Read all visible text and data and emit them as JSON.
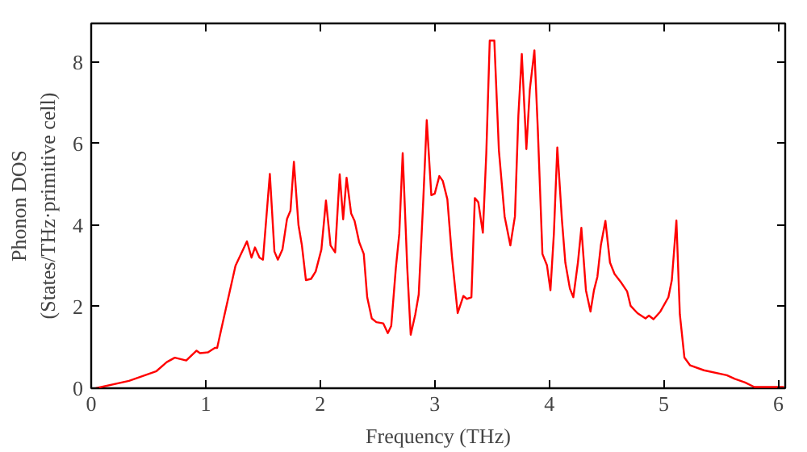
{
  "chart_data": {
    "type": "line",
    "xlabel": "Frequency (THz)",
    "ylabel": "Phonon DOS\n(States/THz·primitive cell)",
    "xlim": [
      0,
      6.06
    ],
    "ylim": [
      0,
      8.94
    ],
    "xticks": [
      0,
      1,
      2,
      3,
      4,
      5,
      6
    ],
    "yticks": [
      0,
      2,
      4,
      6,
      8
    ],
    "grid": false,
    "marker": "none",
    "line_style": "solid",
    "series": [
      {
        "color": "#ff0000",
        "x": [
          0.04,
          0.33,
          0.57,
          0.66,
          0.73,
          0.83,
          0.92,
          0.95,
          1.02,
          1.08,
          1.1,
          1.14,
          1.26,
          1.36,
          1.4,
          1.43,
          1.47,
          1.5,
          1.56,
          1.6,
          1.63,
          1.67,
          1.71,
          1.74,
          1.77,
          1.81,
          1.84,
          1.875,
          1.92,
          1.96,
          2.01,
          2.05,
          2.09,
          2.13,
          2.17,
          2.2,
          2.23,
          2.27,
          2.3,
          2.34,
          2.38,
          2.41,
          2.45,
          2.49,
          2.55,
          2.59,
          2.62,
          2.66,
          2.69,
          2.72,
          2.76,
          2.79,
          2.83,
          2.86,
          2.9,
          2.93,
          2.97,
          3.0,
          3.04,
          3.07,
          3.11,
          3.15,
          3.2,
          3.25,
          3.28,
          3.32,
          3.35,
          3.38,
          3.42,
          3.45,
          3.48,
          3.52,
          3.56,
          3.61,
          3.66,
          3.7,
          3.73,
          3.76,
          3.8,
          3.83,
          3.87,
          3.9,
          3.94,
          3.98,
          4.01,
          4.04,
          4.07,
          4.11,
          4.14,
          4.18,
          4.21,
          4.25,
          4.28,
          4.32,
          4.36,
          4.39,
          4.42,
          4.45,
          4.49,
          4.53,
          4.57,
          4.63,
          4.68,
          4.71,
          4.77,
          4.84,
          4.87,
          4.91,
          4.97,
          5.04,
          5.07,
          5.11,
          5.14,
          5.18,
          5.23,
          5.35,
          5.55,
          5.62,
          5.71,
          5.79,
          6.05
        ],
        "values": [
          0,
          0.18,
          0.42,
          0.64,
          0.75,
          0.68,
          0.92,
          0.86,
          0.88,
          0.99,
          0.99,
          1.5,
          3.0,
          3.6,
          3.2,
          3.45,
          3.2,
          3.15,
          5.25,
          3.35,
          3.15,
          3.4,
          4.15,
          4.35,
          5.55,
          4.0,
          3.5,
          2.65,
          2.68,
          2.86,
          3.4,
          4.6,
          3.5,
          3.33,
          5.24,
          4.14,
          5.16,
          4.28,
          4.1,
          3.58,
          3.29,
          2.23,
          1.71,
          1.62,
          1.59,
          1.35,
          1.53,
          2.94,
          3.78,
          5.76,
          2.94,
          1.31,
          1.81,
          2.3,
          4.63,
          6.57,
          4.73,
          4.77,
          5.2,
          5.08,
          4.63,
          3.22,
          1.84,
          2.26,
          2.19,
          2.23,
          4.66,
          4.56,
          3.81,
          5.76,
          8.52,
          8.52,
          5.83,
          4.21,
          3.5,
          4.21,
          6.68,
          8.19,
          5.86,
          7.32,
          8.28,
          6.33,
          3.29,
          3.01,
          2.4,
          3.78,
          5.9,
          4.14,
          3.08,
          2.44,
          2.23,
          3.08,
          3.93,
          2.4,
          1.88,
          2.4,
          2.73,
          3.5,
          4.1,
          3.08,
          2.8,
          2.58,
          2.37,
          2.02,
          1.84,
          1.71,
          1.78,
          1.69,
          1.88,
          2.23,
          2.65,
          4.11,
          1.81,
          0.75,
          0.56,
          0.44,
          0.32,
          0.23,
          0.14,
          0.03,
          0.03
        ]
      }
    ]
  }
}
